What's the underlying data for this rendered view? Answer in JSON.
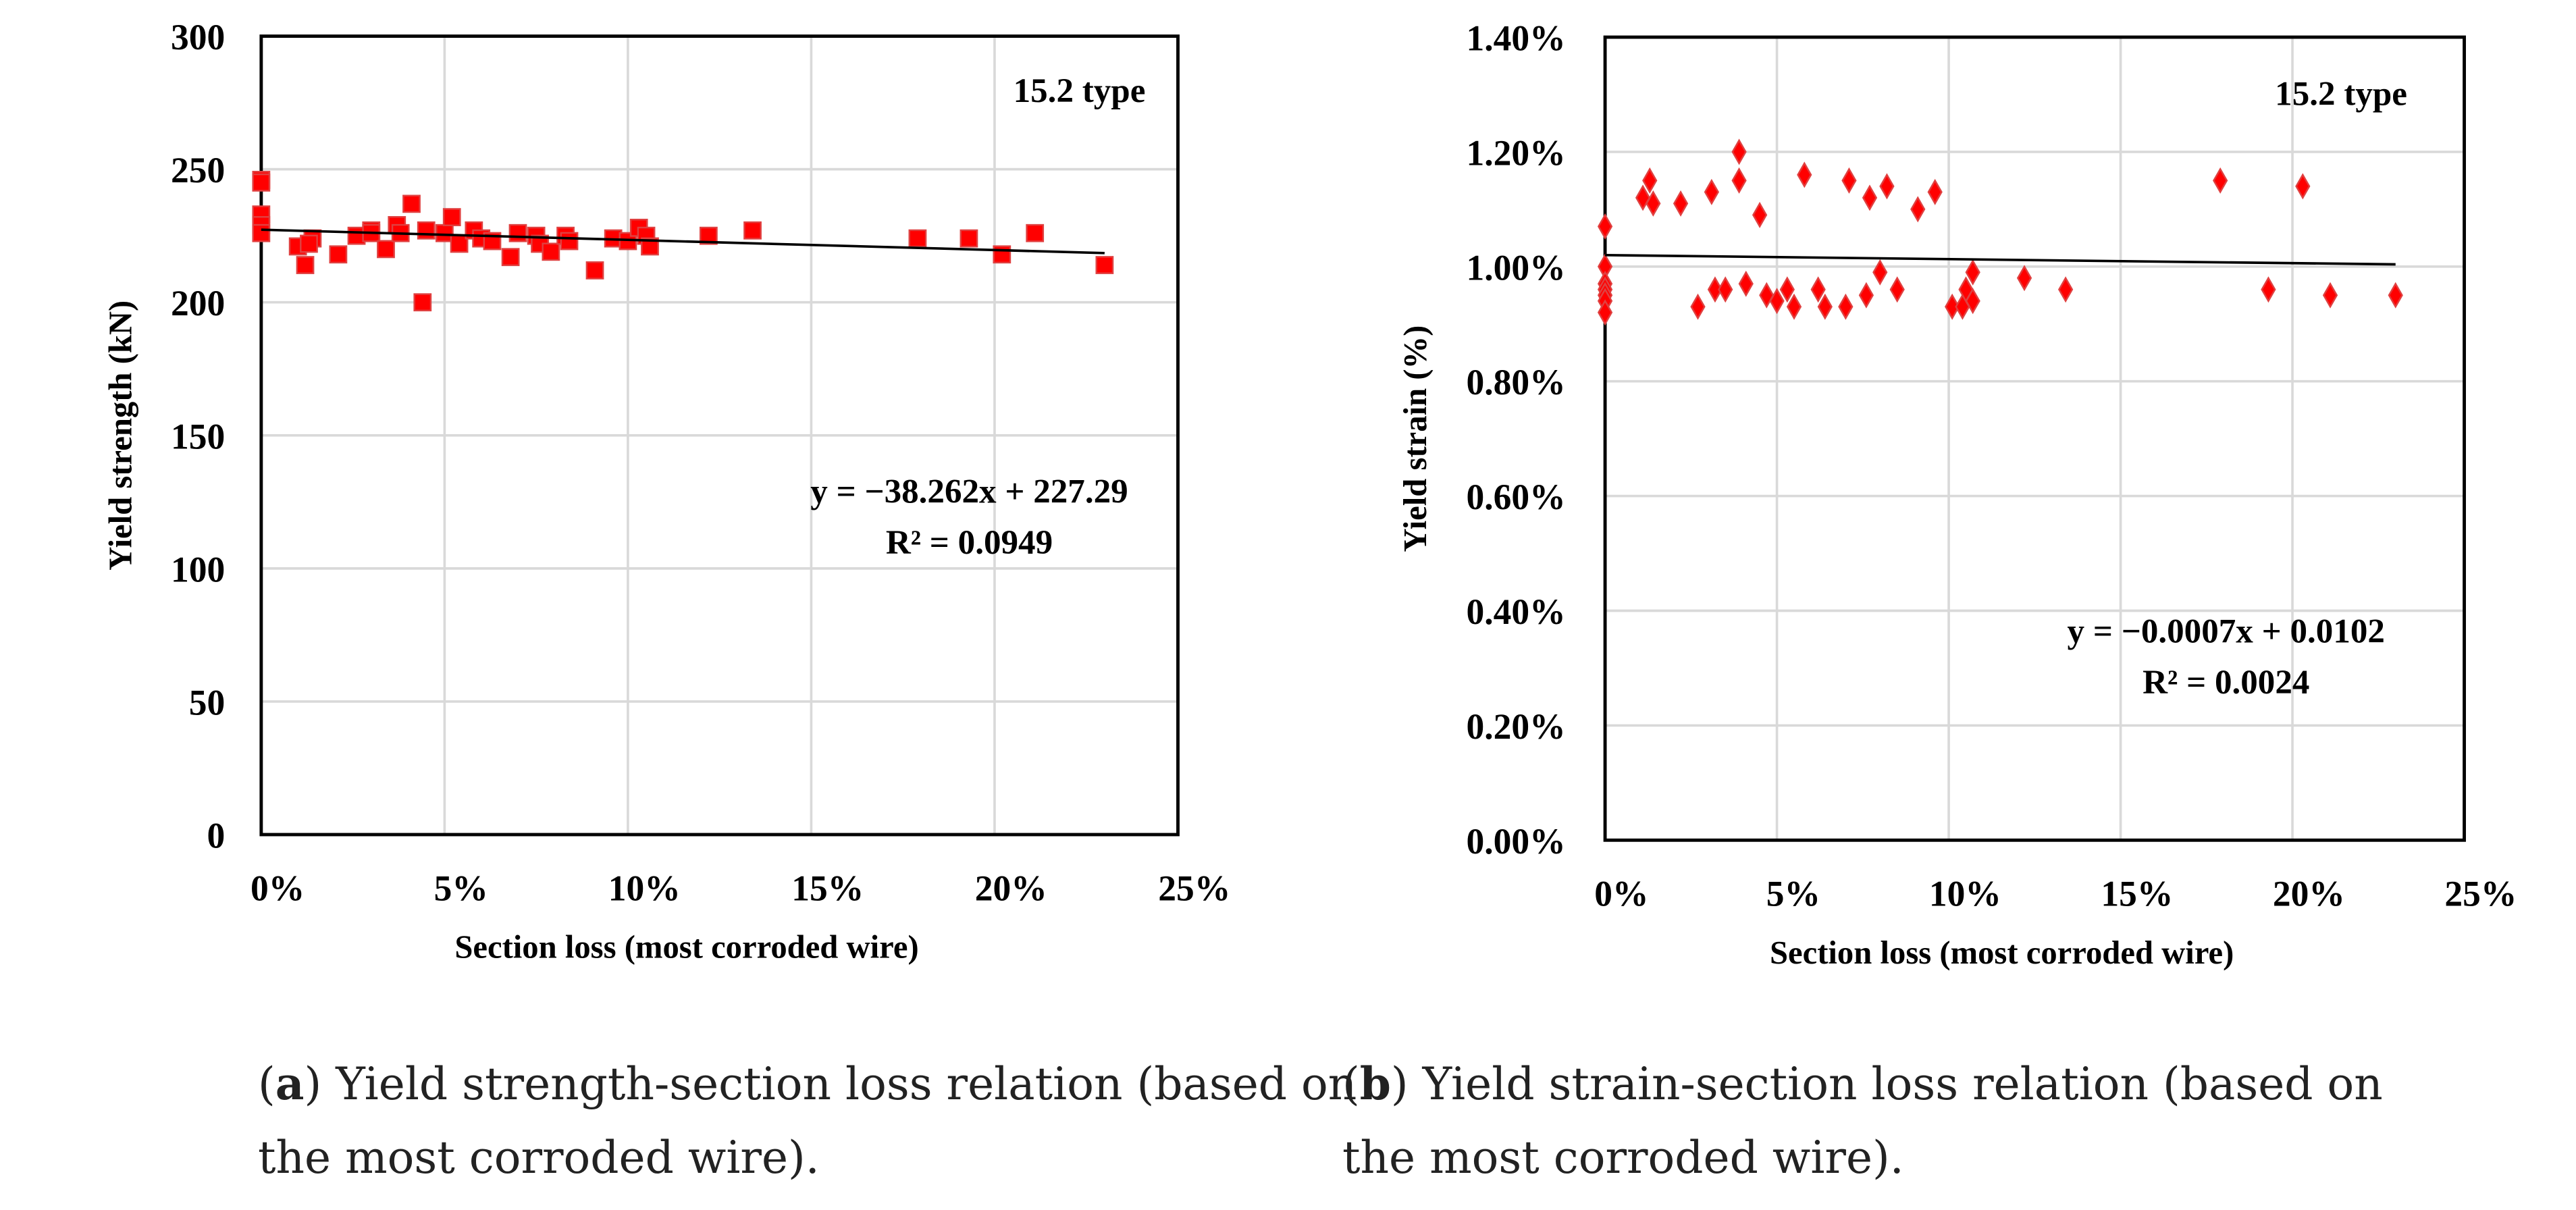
{
  "chart_data": [
    {
      "type": "scatter",
      "panel": "a",
      "title": "",
      "annotation": "15.2 type",
      "xlabel": "Section loss (most corroded wire)",
      "ylabel": "Yield strength (kN)",
      "xlim": [
        0,
        25
      ],
      "ylim": [
        0,
        300
      ],
      "xticks": [
        "0%",
        "5%",
        "10%",
        "15%",
        "20%",
        "25%"
      ],
      "yticks": [
        "0",
        "50",
        "100",
        "150",
        "200",
        "250",
        "300"
      ],
      "grid": true,
      "marker": "square",
      "color": "#ff0000",
      "trendline": {
        "slope": -38.262,
        "intercept": 227.29,
        "equation": "y = −38.262x + 227.29",
        "r2": "R² = 0.0949"
      },
      "points": [
        [
          0,
          246
        ],
        [
          0,
          245
        ],
        [
          0,
          233
        ],
        [
          0,
          229
        ],
        [
          0,
          226
        ],
        [
          1.0,
          221
        ],
        [
          1.2,
          214
        ],
        [
          1.4,
          224
        ],
        [
          1.3,
          222
        ],
        [
          2.1,
          218
        ],
        [
          2.6,
          225
        ],
        [
          3.0,
          227
        ],
        [
          3.0,
          226
        ],
        [
          3.4,
          220
        ],
        [
          3.7,
          229
        ],
        [
          3.8,
          226
        ],
        [
          4.1,
          237
        ],
        [
          4.4,
          200
        ],
        [
          4.5,
          227
        ],
        [
          5.0,
          226
        ],
        [
          5.2,
          232
        ],
        [
          5.4,
          222
        ],
        [
          5.8,
          227
        ],
        [
          6.0,
          224
        ],
        [
          6.3,
          223
        ],
        [
          6.8,
          217
        ],
        [
          7.0,
          226
        ],
        [
          7.5,
          225
        ],
        [
          7.6,
          222
        ],
        [
          7.9,
          219
        ],
        [
          8.3,
          225
        ],
        [
          8.4,
          223
        ],
        [
          9.1,
          212
        ],
        [
          9.6,
          224
        ],
        [
          10.0,
          223
        ],
        [
          10.3,
          228
        ],
        [
          10.5,
          225
        ],
        [
          10.6,
          221
        ],
        [
          12.2,
          225
        ],
        [
          13.4,
          227
        ],
        [
          17.9,
          224
        ],
        [
          19.3,
          224
        ],
        [
          20.2,
          218
        ],
        [
          21.1,
          226
        ],
        [
          23.0,
          214
        ]
      ]
    },
    {
      "type": "scatter",
      "panel": "b",
      "title": "",
      "annotation": "15.2 type",
      "xlabel": "Section loss (most corroded wire)",
      "ylabel": "Yield strain (%)",
      "xlim": [
        0,
        25
      ],
      "ylim": [
        0,
        1.4
      ],
      "xticks": [
        "0%",
        "5%",
        "10%",
        "15%",
        "20%",
        "25%"
      ],
      "yticks": [
        "0.00%",
        "0.20%",
        "0.40%",
        "0.60%",
        "0.80%",
        "1.00%",
        "1.20%",
        "1.40%"
      ],
      "grid": true,
      "marker": "diamond",
      "color": "#ff0000",
      "trendline": {
        "slope": -0.0007,
        "intercept": 0.0102,
        "equation": "y = −0.0007x + 0.0102",
        "r2": "R² = 0.0024"
      },
      "points": [
        [
          0,
          1.07
        ],
        [
          0,
          1.0
        ],
        [
          0,
          0.97
        ],
        [
          0,
          0.96
        ],
        [
          0,
          0.95
        ],
        [
          0,
          0.94
        ],
        [
          0,
          0.92
        ],
        [
          1.1,
          1.12
        ],
        [
          1.3,
          1.15
        ],
        [
          1.4,
          1.11
        ],
        [
          2.2,
          1.11
        ],
        [
          2.7,
          0.93
        ],
        [
          3.1,
          1.13
        ],
        [
          3.2,
          0.96
        ],
        [
          3.5,
          0.96
        ],
        [
          3.9,
          1.2
        ],
        [
          3.9,
          1.15
        ],
        [
          4.1,
          0.97
        ],
        [
          4.5,
          1.09
        ],
        [
          4.7,
          0.95
        ],
        [
          5.0,
          0.94
        ],
        [
          5.3,
          0.96
        ],
        [
          5.5,
          0.93
        ],
        [
          5.8,
          1.16
        ],
        [
          6.2,
          0.96
        ],
        [
          6.4,
          0.93
        ],
        [
          7.0,
          0.93
        ],
        [
          7.1,
          1.15
        ],
        [
          7.6,
          0.95
        ],
        [
          7.7,
          1.12
        ],
        [
          8.0,
          0.99
        ],
        [
          8.2,
          1.14
        ],
        [
          8.5,
          0.96
        ],
        [
          9.1,
          1.1
        ],
        [
          9.6,
          1.13
        ],
        [
          10.1,
          0.93
        ],
        [
          10.4,
          0.93
        ],
        [
          10.5,
          0.96
        ],
        [
          10.7,
          0.94
        ],
        [
          10.7,
          0.99
        ],
        [
          12.2,
          0.98
        ],
        [
          13.4,
          0.96
        ],
        [
          17.9,
          1.15
        ],
        [
          19.3,
          0.96
        ],
        [
          20.3,
          1.14
        ],
        [
          21.1,
          0.95
        ],
        [
          23.0,
          0.95
        ]
      ]
    }
  ],
  "captions": [
    {
      "label": "a",
      "line1": " Yield strength-section loss relation (based on",
      "line2": "the most corroded wire)."
    },
    {
      "label": "b",
      "line1": " Yield strain-section loss relation (based on",
      "line2": "the most corroded wire)."
    }
  ]
}
